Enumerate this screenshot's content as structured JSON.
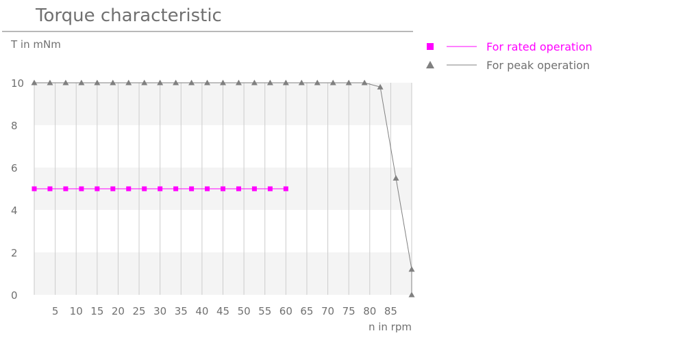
{
  "chart_data": {
    "type": "line",
    "title": "Torque characteristic",
    "ylabel": "T in mNm",
    "xlabel": "n in rpm",
    "xlim": [
      0,
      90
    ],
    "ylim": [
      0,
      10
    ],
    "x_ticks": [
      5,
      10,
      15,
      20,
      25,
      30,
      35,
      40,
      45,
      50,
      55,
      60,
      65,
      70,
      75,
      80,
      85
    ],
    "y_ticks": [
      0,
      2,
      4,
      6,
      8,
      10
    ],
    "grid": "vertical lines at x ticks, alternating shaded horizontal bands",
    "legend": "right",
    "series": [
      {
        "name": "For rated operation",
        "marker": "square",
        "color": "#ff00ff",
        "x": [
          0,
          3.75,
          7.5,
          11.25,
          15,
          18.75,
          22.5,
          26.25,
          30,
          33.75,
          37.5,
          41.25,
          45,
          48.75,
          52.5,
          56.25,
          60
        ],
        "y": [
          5,
          5,
          5,
          5,
          5,
          5,
          5,
          5,
          5,
          5,
          5,
          5,
          5,
          5,
          5,
          5,
          5
        ]
      },
      {
        "name": "For peak operation",
        "marker": "triangle",
        "color": "#808080",
        "x": [
          0,
          3.75,
          7.5,
          11.25,
          15,
          18.75,
          22.5,
          26.25,
          30,
          33.75,
          37.5,
          41.25,
          45,
          48.75,
          52.5,
          56.25,
          60,
          63.75,
          67.5,
          71.25,
          75,
          78.75,
          82.5,
          86.25,
          90,
          90
        ],
        "y": [
          10,
          10,
          10,
          10,
          10,
          10,
          10,
          10,
          10,
          10,
          10,
          10,
          10,
          10,
          10,
          10,
          10,
          10,
          10,
          10,
          10,
          10,
          9.8,
          5.5,
          1.2,
          0
        ]
      }
    ]
  }
}
